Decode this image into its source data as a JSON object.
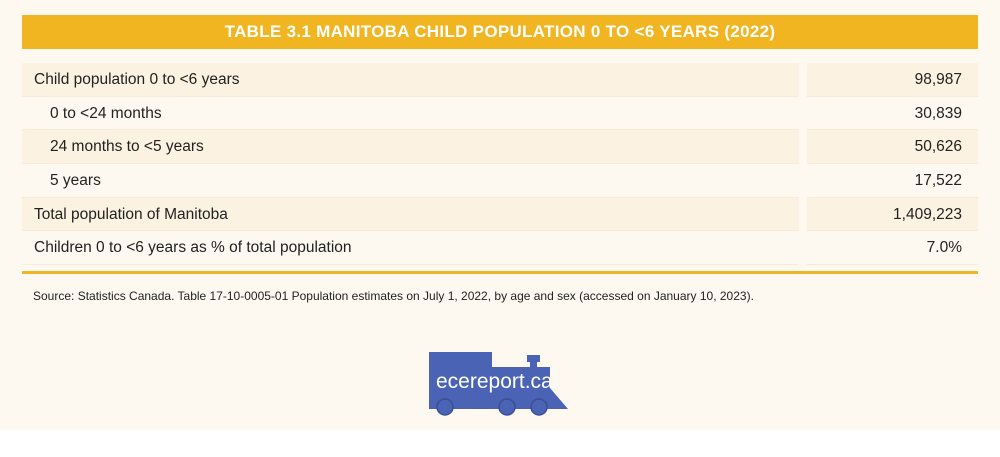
{
  "title": "TABLE 3.1 MANITOBA CHILD POPULATION 0 TO <6 YEARS (2022)",
  "rows": [
    {
      "label": "Child population 0 to <6 years",
      "value": "98,987"
    },
    {
      "label": "0 to <24 months",
      "value": "30,839"
    },
    {
      "label": "24 months to <5 years",
      "value": "50,626"
    },
    {
      "label": "5 years",
      "value": "17,522"
    },
    {
      "label": "Total population of Manitoba",
      "value": "1,409,223"
    },
    {
      "label": "Children 0 to <6 years as % of total population",
      "value": "7.0%"
    }
  ],
  "source": "Source: Statistics Canada. Table 17-10-0005-01 Population estimates on July 1, 2022, by age and sex (accessed on January 10, 2023).",
  "logo": {
    "text": "ecereport.ca",
    "color": "#4a63b5"
  },
  "colors": {
    "accent": "#f0b521",
    "background": "#fdf9f0"
  }
}
